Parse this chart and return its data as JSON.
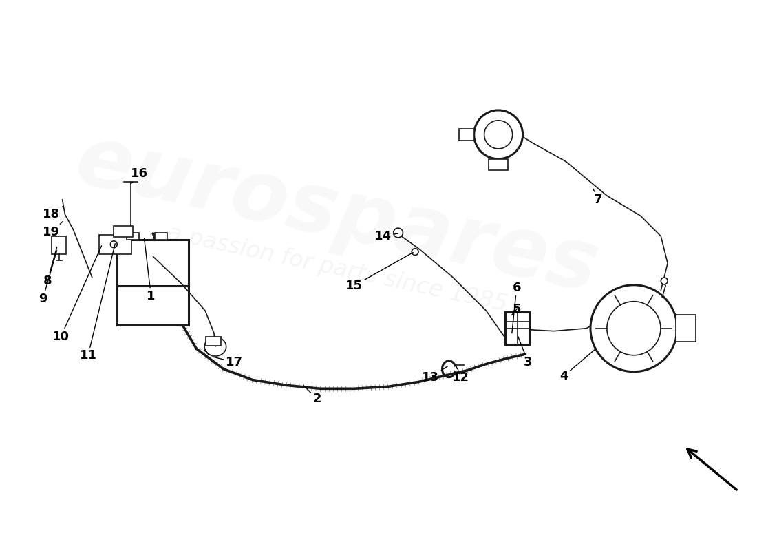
{
  "bg_color": "#ffffff",
  "watermark_text1": "eurospares",
  "watermark_text2": "a passion for parts since 1985",
  "line_color": "#1a1a1a",
  "label_color": "#000000",
  "font_size_labels": 13,
  "parts_labels": [
    [
      1,
      195,
      455,
      205,
      370
    ],
    [
      2,
      430,
      238,
      450,
      218
    ],
    [
      3,
      747,
      310,
      762,
      272
    ],
    [
      4,
      862,
      292,
      815,
      252
    ],
    [
      5,
      738,
      342,
      745,
      350
    ],
    [
      6,
      738,
      315,
      745,
      382
    ],
    [
      7,
      858,
      528,
      865,
      512
    ],
    [
      8,
      66,
      442,
      52,
      392
    ],
    [
      9,
      66,
      437,
      45,
      365
    ],
    [
      10,
      132,
      444,
      72,
      310
    ],
    [
      11,
      152,
      447,
      112,
      282
    ],
    [
      12,
      655,
      268,
      662,
      250
    ],
    [
      13,
      643,
      266,
      618,
      250
    ],
    [
      14,
      570,
      462,
      548,
      458
    ],
    [
      15,
      592,
      434,
      505,
      385
    ],
    [
      16,
      175,
      535,
      188,
      550
    ],
    [
      17,
      296,
      280,
      328,
      272
    ],
    [
      18,
      75,
      502,
      58,
      490
    ],
    [
      19,
      75,
      480,
      58,
      464
    ]
  ]
}
